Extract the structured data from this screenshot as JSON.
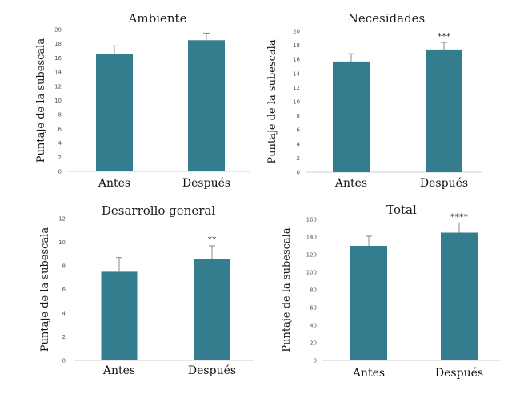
{
  "chart_data": [
    {
      "type": "bar",
      "title": "Ambiente",
      "ylabel": "Puntaje de la subescala",
      "categories": [
        "Antes",
        "Después"
      ],
      "values": [
        16.6,
        18.5
      ],
      "errors": [
        1.1,
        1.0
      ],
      "significance": [
        "",
        ""
      ],
      "ylim": [
        0,
        20
      ],
      "yticks": [
        "0",
        "2",
        "4",
        "6",
        "8",
        "10",
        "12",
        "14",
        "16",
        "18",
        "20"
      ],
      "color": "#347d8f"
    },
    {
      "type": "bar",
      "title": "Necesidades",
      "ylabel": "Puntaje de la subescala",
      "categories": [
        "Antes",
        "Después"
      ],
      "values": [
        15.7,
        17.4
      ],
      "errors": [
        1.1,
        1.0
      ],
      "significance": [
        "",
        "***"
      ],
      "ylim": [
        0,
        20
      ],
      "yticks": [
        "0",
        "2",
        "4",
        "6",
        "8",
        "10",
        "12",
        "14",
        "16",
        "18",
        "20"
      ],
      "color": "#347d8f"
    },
    {
      "type": "bar",
      "title": "Desarrollo general",
      "ylabel": "Puntaje de la subescala",
      "categories": [
        "Antes",
        "Después"
      ],
      "values": [
        7.5,
        8.6
      ],
      "errors": [
        1.2,
        1.1
      ],
      "significance": [
        "",
        "**"
      ],
      "ylim": [
        0,
        12
      ],
      "yticks": [
        "0",
        "2",
        "4",
        "6",
        "8",
        "10",
        "12"
      ],
      "color": "#347d8f"
    },
    {
      "type": "bar",
      "title": "Total",
      "ylabel": "Puntaje de la subescala",
      "categories": [
        "Antes",
        "Después"
      ],
      "values": [
        130,
        145
      ],
      "errors": [
        11,
        11
      ],
      "significance": [
        "",
        "****"
      ],
      "ylim": [
        0,
        160
      ],
      "yticks": [
        "0",
        "20",
        "40",
        "60",
        "80",
        "100",
        "120",
        "140",
        "160"
      ],
      "color": "#347d8f"
    }
  ]
}
